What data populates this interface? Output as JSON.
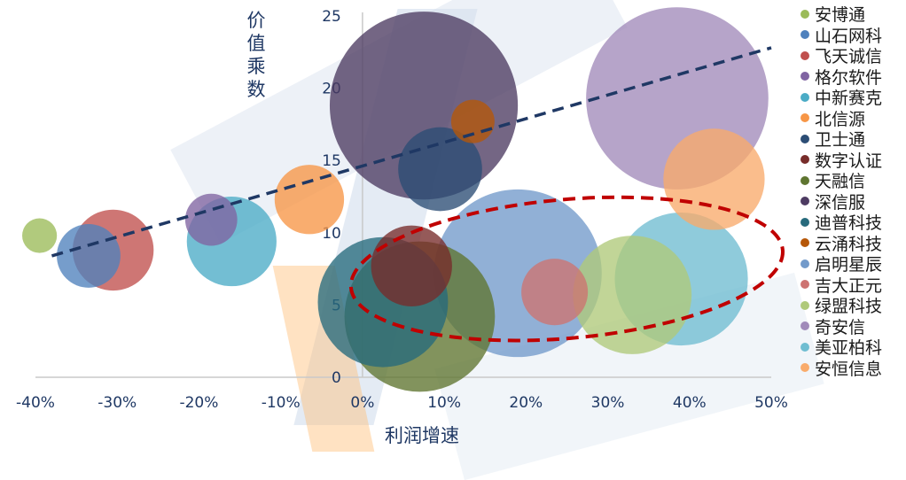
{
  "chart_data": {
    "type": "bubble",
    "xlabel": "利润增速",
    "ylabel": "价值乘数",
    "x_ticks": [
      "-40%",
      "-30%",
      "-20%",
      "-10%",
      "0%",
      "10%",
      "20%",
      "30%",
      "40%",
      "50%"
    ],
    "y_ticks": [
      "0",
      "5",
      "10",
      "15",
      "20",
      "25"
    ],
    "xlim": [
      -40,
      50
    ],
    "ylim": [
      0,
      25
    ],
    "series": [
      {
        "name": "安博通",
        "x": -39.5,
        "y": 9.8,
        "size": 1.2,
        "color": "#9BBB59"
      },
      {
        "name": "山石网科",
        "x": -33.5,
        "y": 8.4,
        "size": 2.2,
        "color": "#4F81BD"
      },
      {
        "name": "飞天诚信",
        "x": -30.5,
        "y": 8.8,
        "size": 2.8,
        "color": "#C0504D"
      },
      {
        "name": "格尔软件",
        "x": -18.5,
        "y": 10.9,
        "size": 1.8,
        "color": "#8064A2"
      },
      {
        "name": "中新赛克",
        "x": -16,
        "y": 9.4,
        "size": 3.1,
        "color": "#4BACC6"
      },
      {
        "name": "北信源",
        "x": -6.5,
        "y": 12.3,
        "size": 2.4,
        "color": "#F79646"
      },
      {
        "name": "卫士通",
        "x": 9.5,
        "y": 14.4,
        "size": 2.9,
        "color": "#2C4D75"
      },
      {
        "name": "数字认证",
        "x": 6,
        "y": 7.7,
        "size": 2.8,
        "color": "#772C2A"
      },
      {
        "name": "天融信",
        "x": 7,
        "y": 4.2,
        "size": 5.2,
        "color": "#5F7530"
      },
      {
        "name": "深信服",
        "x": 7.5,
        "y": 18.8,
        "size": 6.5,
        "color": "#4D3B62"
      },
      {
        "name": "迪普科技",
        "x": 2.5,
        "y": 5.2,
        "size": 4.5,
        "color": "#276A7C"
      },
      {
        "name": "云涌科技",
        "x": 13.5,
        "y": 17.7,
        "size": 1.5,
        "color": "#B65708"
      },
      {
        "name": "启明星辰",
        "x": 19,
        "y": 7.2,
        "size": 5.8,
        "color": "#729ACA"
      },
      {
        "name": "吉大正元",
        "x": 23.5,
        "y": 5.9,
        "size": 2.3,
        "color": "#CD7371"
      },
      {
        "name": "绿盟科技",
        "x": 33,
        "y": 5.7,
        "size": 4.1,
        "color": "#AFC97A"
      },
      {
        "name": "奇安信",
        "x": 38.5,
        "y": 19.3,
        "size": 6.3,
        "color": "#A18BBA"
      },
      {
        "name": "美亚柏科",
        "x": 39,
        "y": 6.8,
        "size": 4.6,
        "color": "#6FBDD1"
      },
      {
        "name": "安恒信息",
        "x": 43,
        "y": 13.7,
        "size": 3.5,
        "color": "#F9AB6B"
      }
    ],
    "trendline": {
      "style": "dashed",
      "color": "#1F3864",
      "x": [
        -38,
        50
      ],
      "y": [
        8.4,
        22.8
      ]
    },
    "highlight_ellipse": {
      "style": "dashed",
      "color": "#C00000",
      "center": [
        25,
        7.5
      ],
      "rx": 26.5,
      "ry": 4.8,
      "rotation_deg": -5
    },
    "legend_position": "right",
    "grid": false
  }
}
